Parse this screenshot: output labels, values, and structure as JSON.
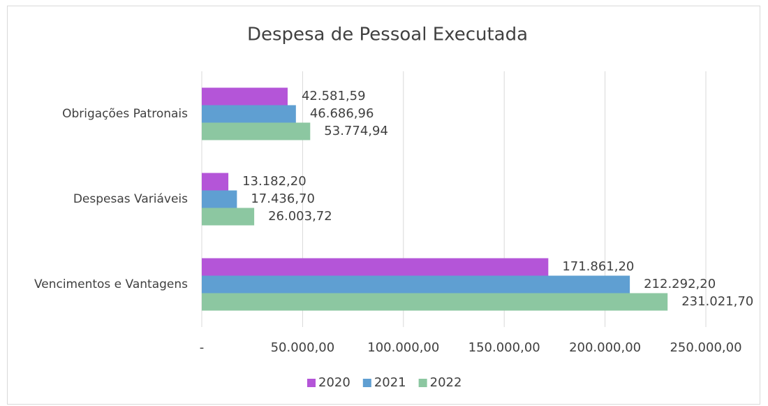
{
  "chart_data": {
    "type": "hbar",
    "title": "Despesa de Pessoal Executada",
    "categories": [
      "Obrigações Patronais",
      "Despesas Variáveis",
      "Vencimentos e Vantagens"
    ],
    "series": [
      {
        "name": "2020",
        "color": "#b455d8",
        "values": [
          42581.59,
          13182.2,
          171861.2
        ],
        "value_labels": [
          "42.581,59",
          "13.182,20",
          "171.861,20"
        ]
      },
      {
        "name": "2021",
        "color": "#5f9fd2",
        "values": [
          46686.96,
          17436.7,
          212292.2
        ],
        "value_labels": [
          "46.686,96",
          "17.436,70",
          "212.292,20"
        ]
      },
      {
        "name": "2022",
        "color": "#8cc7a1",
        "values": [
          53774.94,
          26003.72,
          231021.7
        ],
        "value_labels": [
          "53.774,94",
          "26.003,72",
          "231.021,70"
        ]
      }
    ],
    "xlim": [
      0,
      250000
    ],
    "xticks": [
      {
        "value": 0,
        "label": "-"
      },
      {
        "value": 50000,
        "label": "50.000,00"
      },
      {
        "value": 100000,
        "label": "100.000,00"
      },
      {
        "value": 150000,
        "label": "150.000,00"
      },
      {
        "value": 200000,
        "label": "200.000,00"
      },
      {
        "value": 250000,
        "label": "250.000,00"
      }
    ],
    "grid": true,
    "legend": "bottom"
  }
}
